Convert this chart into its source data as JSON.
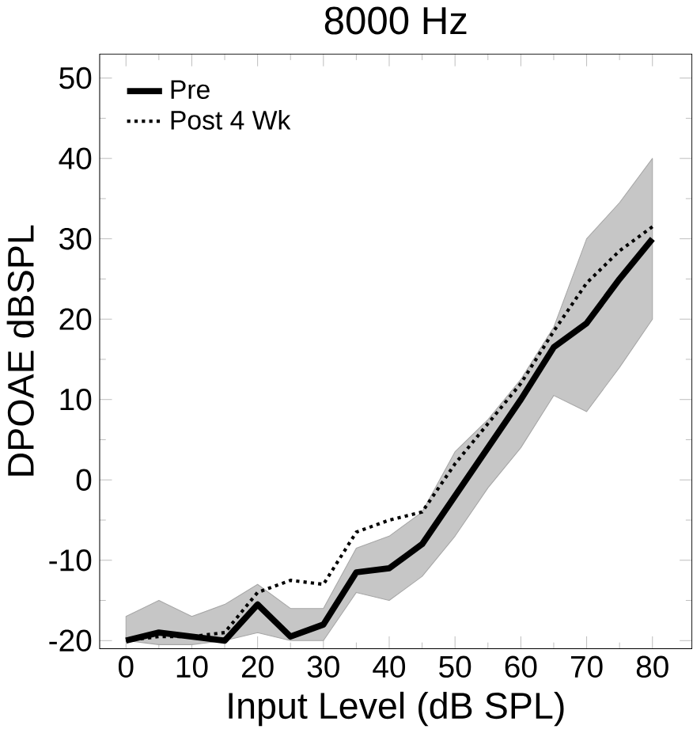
{
  "chart_data": {
    "type": "line",
    "title": "8000 Hz",
    "xlabel": "Input Level (dB SPL)",
    "ylabel": "DPOAE   dBSPL",
    "x": [
      0,
      5,
      10,
      15,
      20,
      25,
      30,
      35,
      40,
      45,
      50,
      55,
      60,
      65,
      70,
      75,
      80
    ],
    "series": [
      {
        "name": "Pre",
        "color": "#000000",
        "line_style": "solid",
        "values": [
          -20,
          -19,
          -19.5,
          -20,
          -15.5,
          -19.5,
          -18,
          -11.5,
          -11,
          -8,
          -2,
          4,
          10,
          16.5,
          19.5,
          25,
          30
        ],
        "lower": [
          -20,
          -20.5,
          -20.5,
          -20,
          -19,
          -20,
          -20,
          -14,
          -15,
          -12,
          -7,
          -1,
          4,
          10.5,
          8.5,
          14,
          20
        ],
        "upper": [
          -17,
          -15,
          -17,
          -15.5,
          -13,
          -16,
          -16,
          -8.5,
          -7,
          -4,
          3.5,
          7.5,
          12.5,
          19,
          30,
          34.5,
          40
        ]
      },
      {
        "name": "Post 4 Wk",
        "color": "#000000",
        "line_style": "dotted",
        "values": [
          -20,
          -19.5,
          -19.5,
          -19,
          -14,
          -12.5,
          -13,
          -6.5,
          -5,
          -4,
          2,
          7,
          12,
          18.5,
          24.5,
          28.5,
          31.5
        ]
      }
    ],
    "xlim": [
      -4,
      86
    ],
    "ylim": [
      -21,
      53
    ],
    "xticks": [
      0,
      10,
      20,
      30,
      40,
      50,
      60,
      70,
      80
    ],
    "yticks": [
      -20,
      -10,
      0,
      10,
      20,
      30,
      40,
      50
    ],
    "grid": false,
    "legend": "top left",
    "marker": "none"
  }
}
